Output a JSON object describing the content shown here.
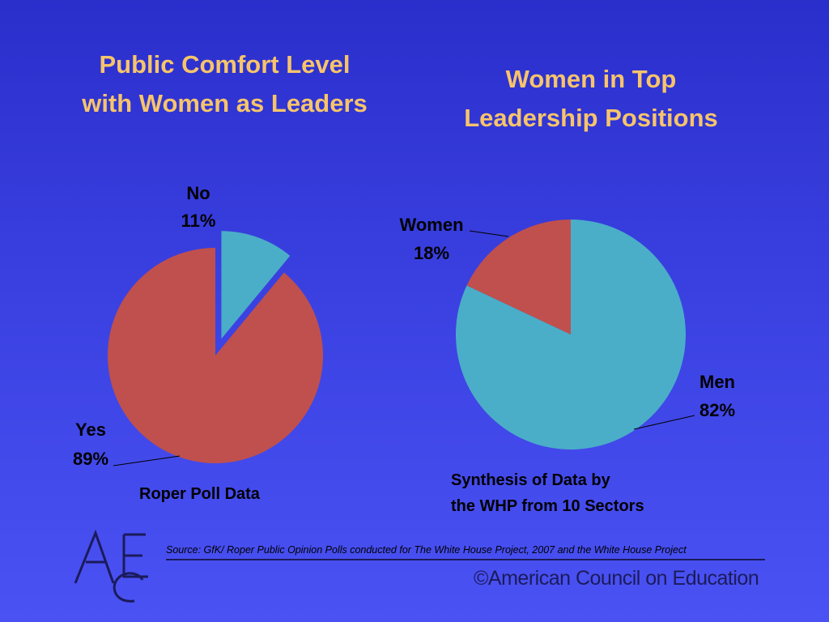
{
  "slide": {
    "left_title": "Public Comfort Level with Women as Leaders",
    "right_title": "Women in Top Leadership Positions",
    "left_caption": "Roper Poll Data",
    "right_caption_line1": "Synthesis of Data by",
    "right_caption_line2": "the WHP from 10 Sectors",
    "source": "Source: GfK/ Roper Public Opinion Polls conducted for The White House Project, 2007 and the White House Project",
    "copyright": "©American Council on Education",
    "logo_letters": "ACE"
  },
  "colors": {
    "teal": "#4aaec8",
    "red": "#c0504d",
    "title": "#f7c46b"
  },
  "chart_data": [
    {
      "type": "pie",
      "title": "Public Comfort Level with Women as Leaders",
      "slices": [
        {
          "label": "No",
          "pct_text": "11%",
          "value": 11,
          "color": "#4aaec8",
          "exploded": true
        },
        {
          "label": "Yes",
          "pct_text": "89%",
          "value": 89,
          "color": "#c0504d",
          "exploded": false
        }
      ]
    },
    {
      "type": "pie",
      "title": "Women in Top Leadership Positions",
      "slices": [
        {
          "label": "Women",
          "pct_text": "18%",
          "value": 18,
          "color": "#c0504d"
        },
        {
          "label": "Men",
          "pct_text": "82%",
          "value": 82,
          "color": "#4aaec8"
        }
      ]
    }
  ]
}
